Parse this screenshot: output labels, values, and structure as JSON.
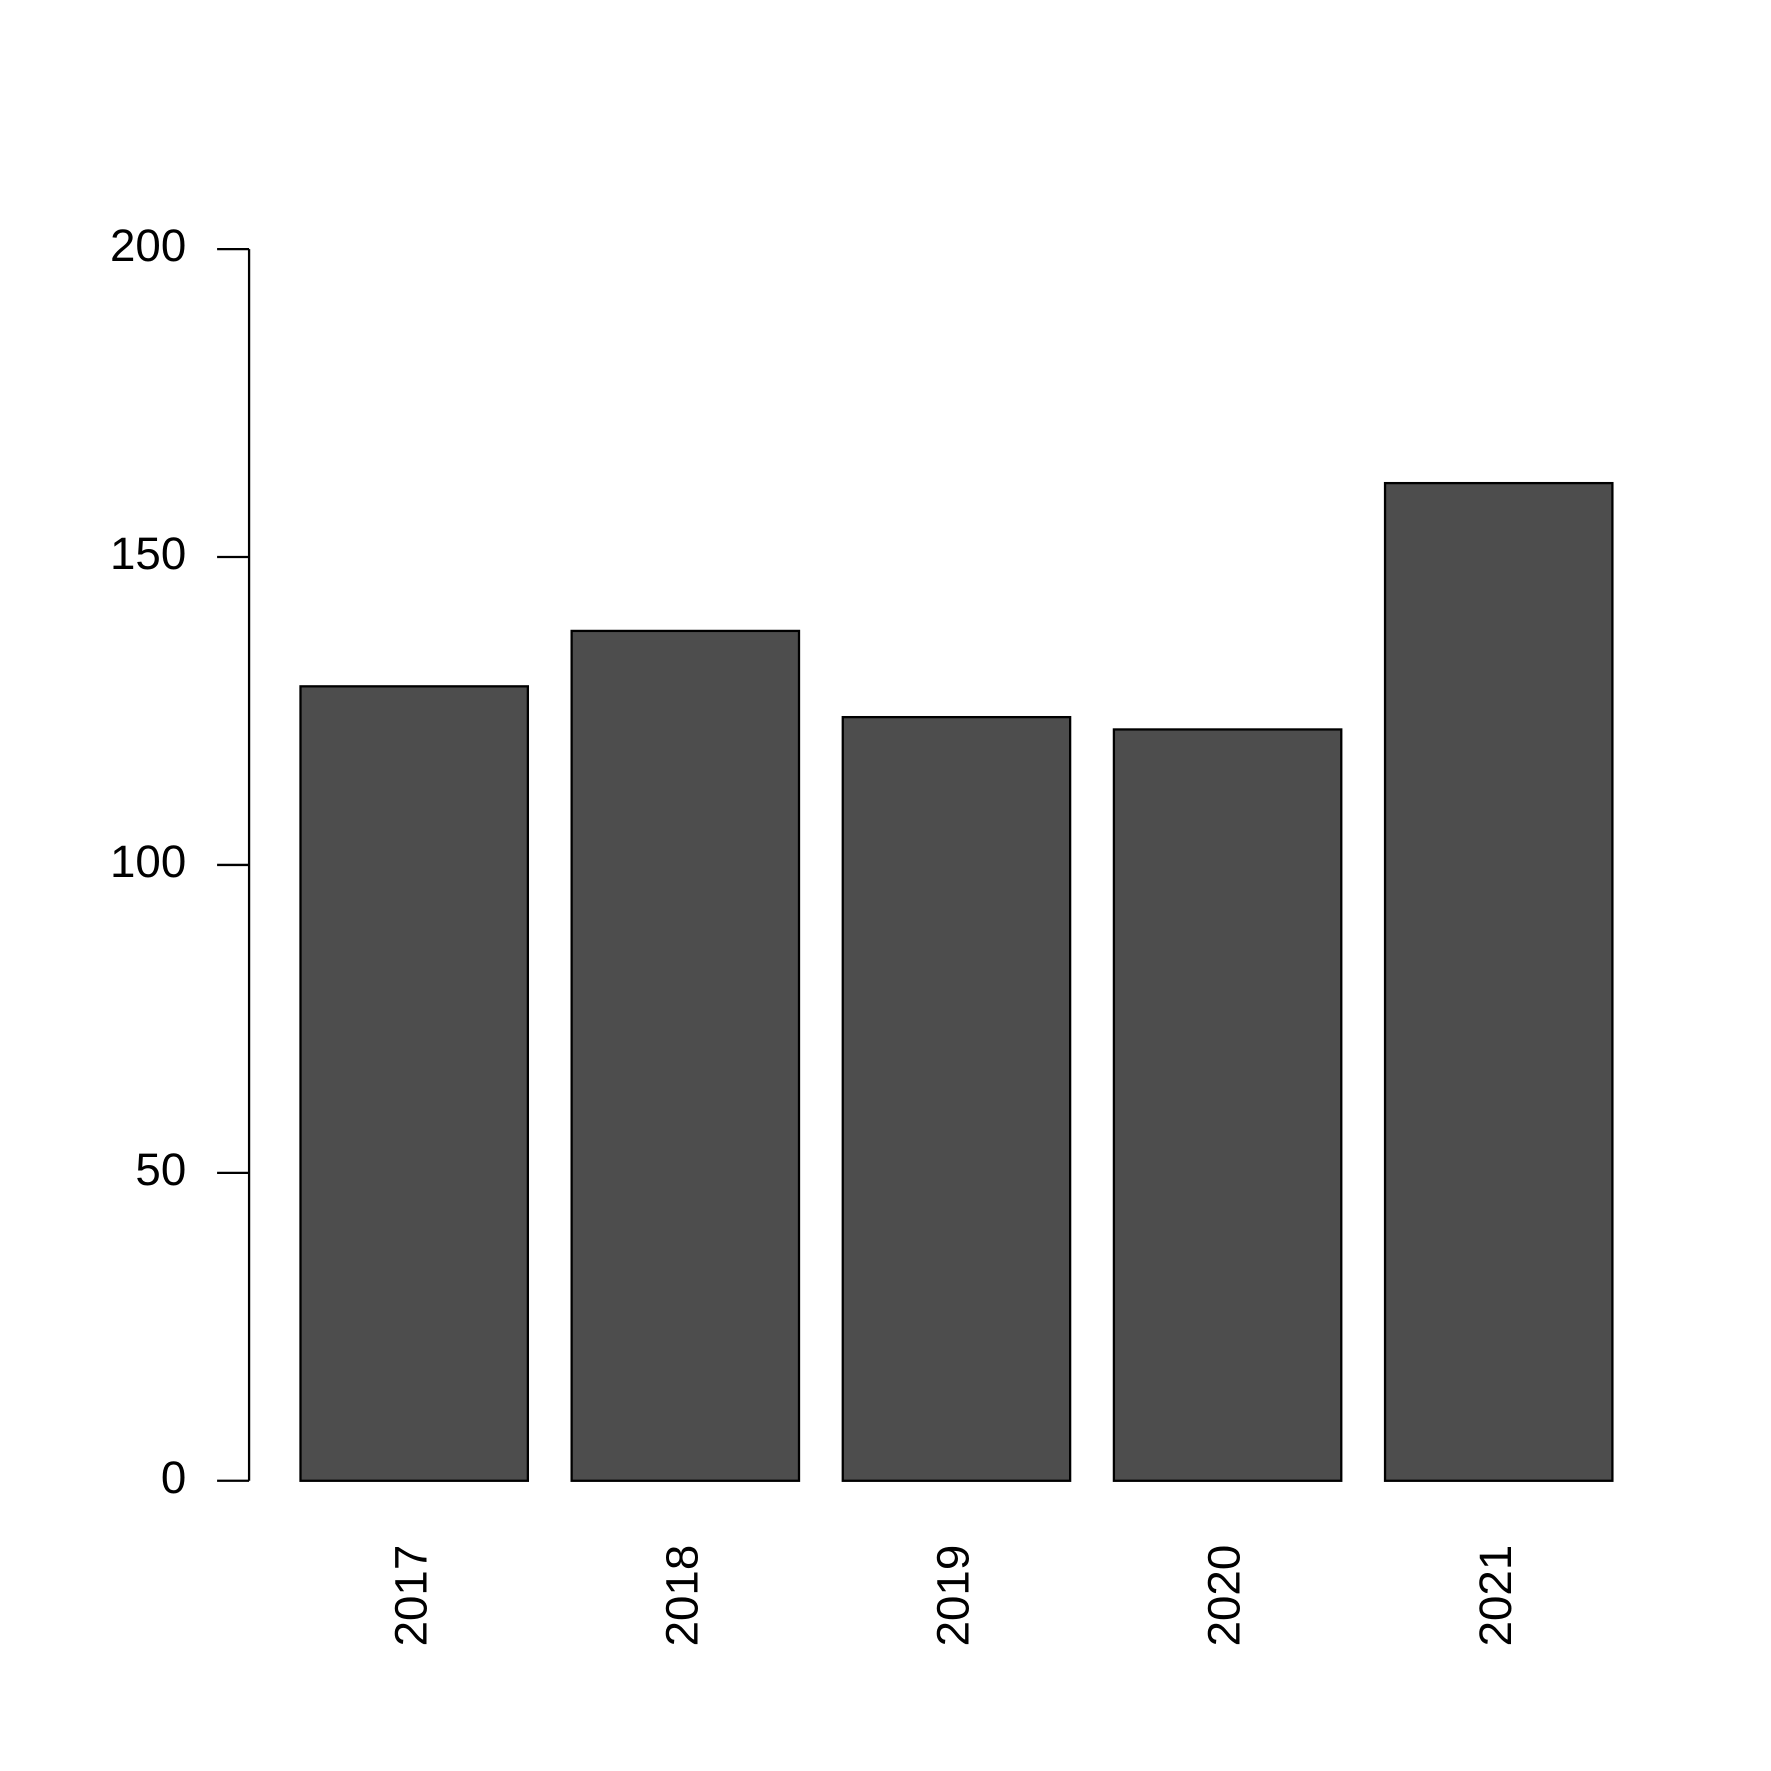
{
  "chart_data": {
    "type": "bar",
    "categories": [
      "2017",
      "2018",
      "2019",
      "2020",
      "2021"
    ],
    "values": [
      129,
      138,
      124,
      122,
      162
    ],
    "color": "#4d4d4d",
    "ylim": [
      0,
      200
    ],
    "yticks": [
      0,
      50,
      100,
      150,
      200
    ],
    "grid": false
  }
}
